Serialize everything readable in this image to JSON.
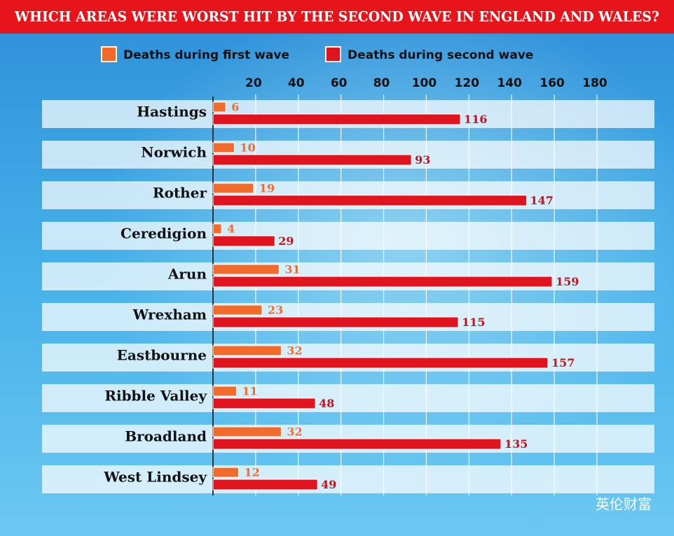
{
  "chart_data": {
    "type": "bar",
    "orientation": "horizontal",
    "title": "WHICH AREAS WERE WORST HIT BY THE SECOND WAVE IN ENGLAND AND WALES?",
    "categories": [
      "Hastings",
      "Norwich",
      "Rother",
      "Ceredigion",
      "Arun",
      "Wrexham",
      "Eastbourne",
      "Ribble Valley",
      "Broadland",
      "West Lindsey"
    ],
    "series": [
      {
        "name": "Deaths during first wave",
        "color": "#f26b2a",
        "values": [
          6,
          10,
          19,
          4,
          31,
          23,
          32,
          11,
          32,
          12
        ]
      },
      {
        "name": "Deaths during second wave",
        "color": "#e0141e",
        "values": [
          116,
          93,
          147,
          29,
          159,
          115,
          157,
          48,
          135,
          49
        ]
      }
    ],
    "xlim": [
      0,
      180
    ],
    "xticks": [
      20,
      40,
      60,
      80,
      100,
      120,
      140,
      160,
      180
    ],
    "grid": true,
    "watermark": "英伦财富"
  }
}
